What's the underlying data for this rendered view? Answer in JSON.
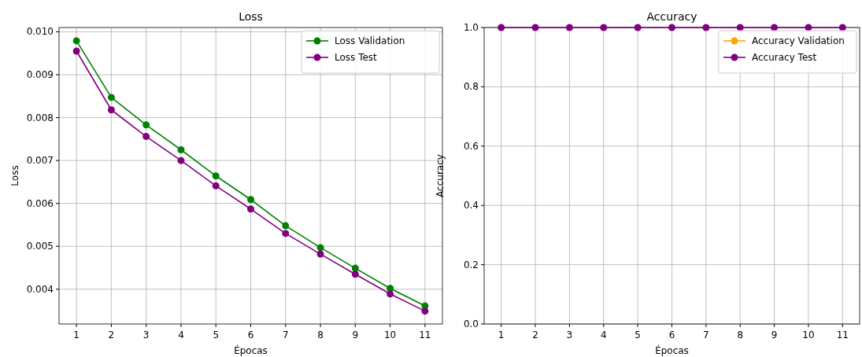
{
  "chart_data": [
    {
      "type": "line",
      "title": "Loss",
      "xlabel": "Épocas",
      "ylabel": "Loss",
      "x": [
        1,
        2,
        3,
        4,
        5,
        6,
        7,
        8,
        9,
        10,
        11
      ],
      "xlim": [
        0.5,
        11.5
      ],
      "xticks": [
        1,
        2,
        3,
        4,
        5,
        6,
        7,
        8,
        9,
        10,
        11
      ],
      "ylim": [
        0.00319,
        0.0101
      ],
      "yticks": [
        {
          "value": 0.004,
          "label": "0.004"
        },
        {
          "value": 0.005,
          "label": "0.005"
        },
        {
          "value": 0.006,
          "label": "0.006"
        },
        {
          "value": 0.007,
          "label": "0.007"
        },
        {
          "value": 0.008,
          "label": "0.008"
        },
        {
          "value": 0.009,
          "label": "0.009"
        },
        {
          "value": 0.01,
          "label": "0.010"
        }
      ],
      "grid": true,
      "legend": "top right",
      "marker": "circle",
      "line_style": "solid",
      "series": [
        {
          "name": "Loss Validation",
          "color": "#008000",
          "values": [
            0.00979,
            0.00847,
            0.00783,
            0.00725,
            0.00664,
            0.00609,
            0.00548,
            0.00497,
            0.00449,
            0.00402,
            0.00361
          ]
        },
        {
          "name": "Loss Test",
          "color": "#800080",
          "values": [
            0.00955,
            0.00818,
            0.00756,
            0.007,
            0.00641,
            0.00587,
            0.0053,
            0.00482,
            0.00435,
            0.00389,
            0.00349
          ]
        }
      ]
    },
    {
      "type": "line",
      "title": "Accuracy",
      "xlabel": "Épocas",
      "ylabel": "Accuracy",
      "x": [
        1,
        2,
        3,
        4,
        5,
        6,
        7,
        8,
        9,
        10,
        11
      ],
      "xlim": [
        0.5,
        11.5
      ],
      "xticks": [
        1,
        2,
        3,
        4,
        5,
        6,
        7,
        8,
        9,
        10,
        11
      ],
      "ylim": [
        0,
        1
      ],
      "yticks": [
        {
          "value": 0,
          "label": "0.0"
        },
        {
          "value": 0.2,
          "label": "0.2"
        },
        {
          "value": 0.4,
          "label": "0.4"
        },
        {
          "value": 0.6,
          "label": "0.6"
        },
        {
          "value": 0.8,
          "label": "0.8"
        },
        {
          "value": 1,
          "label": "1.0"
        }
      ],
      "grid": true,
      "legend": "top right",
      "marker": "circle",
      "line_style": "solid",
      "series": [
        {
          "name": "Accuracy Validation",
          "color": "#ffa500",
          "values": [
            null,
            null,
            null,
            null,
            null,
            null,
            null,
            null,
            null,
            null,
            null
          ]
        },
        {
          "name": "Accuracy Test",
          "color": "#800080",
          "values": [
            1,
            1,
            1,
            1,
            1,
            1,
            1,
            1,
            1,
            1,
            1
          ]
        }
      ]
    }
  ]
}
